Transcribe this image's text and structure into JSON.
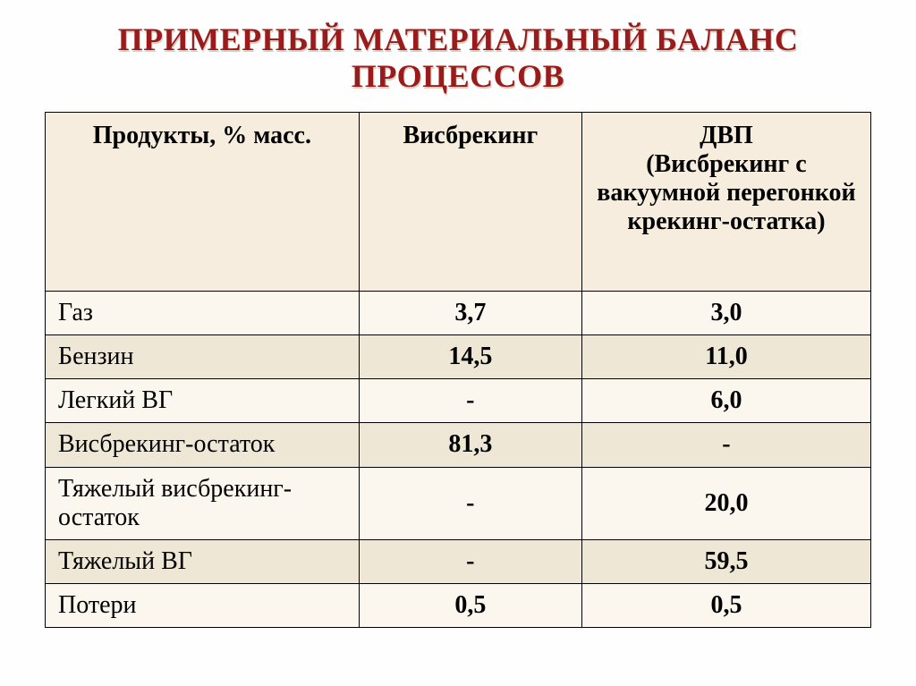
{
  "title_line1": "Примерный материальный баланс",
  "title_line2": "процессов",
  "colors": {
    "title_color": "#9a1b1b",
    "title_shadow": "#d9cfc0",
    "header_bg": "#f6edde",
    "row_bg": "#fbf7ee",
    "row_alt_bg": "#efe7d6",
    "border": "#000000",
    "text": "#000000",
    "slide_bg": "#fefefe"
  },
  "table": {
    "columns": [
      {
        "label_main": "Продукты, % масс.",
        "label_sub": ""
      },
      {
        "label_main": "Висбрекинг",
        "label_sub": ""
      },
      {
        "label_main": "ДВП",
        "label_sub": "(Висбрекинг с вакуумной перегонкой крекинг-остатка)"
      }
    ],
    "rows": [
      {
        "label": "Газ",
        "v1": "3,7",
        "v2": "3,0"
      },
      {
        "label": "Бензин",
        "v1": "14,5",
        "v2": "11,0"
      },
      {
        "label": "Легкий ВГ",
        "v1": "-",
        "v2": "6,0"
      },
      {
        "label": "Висбрекинг-остаток",
        "v1": "81,3",
        "v2": "-"
      },
      {
        "label": "Тяжелый висбрекинг-остаток",
        "v1": "-",
        "v2": "20,0"
      },
      {
        "label": "Тяжелый ВГ",
        "v1": "-",
        "v2": "59,5"
      },
      {
        "label": "Потери",
        "v1": "0,5",
        "v2": "0,5"
      }
    ]
  }
}
